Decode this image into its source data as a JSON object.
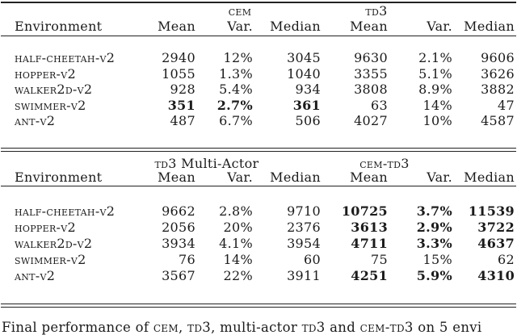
{
  "page": {
    "background": "#ffffff",
    "text_color": "#1b1b1b",
    "rule_color": "#222222"
  },
  "tables": [
    {
      "group_headers": [
        {
          "sc": "cem",
          "rest": ""
        },
        {
          "sc": "td3",
          "rest": ""
        }
      ],
      "col_headers": [
        "Environment",
        "Mean",
        "Var.",
        "Median",
        "Mean",
        "Var.",
        "Median"
      ],
      "rows": [
        {
          "env": "half-cheetah-v2",
          "cells": [
            {
              "v": "2940"
            },
            {
              "v": "12%"
            },
            {
              "v": "3045"
            },
            {
              "v": "9630"
            },
            {
              "v": "2.1%"
            },
            {
              "v": "9606"
            }
          ]
        },
        {
          "env": "hopper-v2",
          "cells": [
            {
              "v": "1055"
            },
            {
              "v": "1.3%"
            },
            {
              "v": "1040"
            },
            {
              "v": "3355"
            },
            {
              "v": "5.1%"
            },
            {
              "v": "3626"
            }
          ]
        },
        {
          "env": "walker2d-v2",
          "cells": [
            {
              "v": "928"
            },
            {
              "v": "5.4%"
            },
            {
              "v": "934"
            },
            {
              "v": "3808"
            },
            {
              "v": "8.9%"
            },
            {
              "v": "3882"
            }
          ]
        },
        {
          "env": "swimmer-v2",
          "cells": [
            {
              "v": "351",
              "b": true
            },
            {
              "v": "2.7%",
              "b": true
            },
            {
              "v": "361",
              "b": true
            },
            {
              "v": "63"
            },
            {
              "v": "14%"
            },
            {
              "v": "47"
            }
          ]
        },
        {
          "env": "ant-v2",
          "cells": [
            {
              "v": "487"
            },
            {
              "v": "6.7%"
            },
            {
              "v": "506"
            },
            {
              "v": "4027"
            },
            {
              "v": "10%"
            },
            {
              "v": "4587"
            }
          ]
        }
      ]
    },
    {
      "group_headers": [
        {
          "sc": "td3",
          "rest": " Multi-Actor"
        },
        {
          "sc": "cem-td3",
          "rest": ""
        }
      ],
      "col_headers": [
        "Environment",
        "Mean",
        "Var.",
        "Median",
        "Mean",
        "Var.",
        "Median"
      ],
      "rows": [
        {
          "env": "half-cheetah-v2",
          "cells": [
            {
              "v": "9662"
            },
            {
              "v": "2.8%"
            },
            {
              "v": "9710"
            },
            {
              "v": "10725",
              "b": true
            },
            {
              "v": "3.7%",
              "b": true
            },
            {
              "v": "11539",
              "b": true
            }
          ]
        },
        {
          "env": "hopper-v2",
          "cells": [
            {
              "v": "2056"
            },
            {
              "v": "20%"
            },
            {
              "v": "2376"
            },
            {
              "v": "3613",
              "b": true
            },
            {
              "v": "2.9%",
              "b": true
            },
            {
              "v": "3722",
              "b": true
            }
          ]
        },
        {
          "env": "walker2d-v2",
          "cells": [
            {
              "v": "3934"
            },
            {
              "v": "4.1%"
            },
            {
              "v": "3954"
            },
            {
              "v": "4711",
              "b": true
            },
            {
              "v": "3.3%",
              "b": true
            },
            {
              "v": "4637",
              "b": true
            }
          ]
        },
        {
          "env": "swimmer-v2",
          "cells": [
            {
              "v": "76"
            },
            {
              "v": "14%"
            },
            {
              "v": "60"
            },
            {
              "v": "75"
            },
            {
              "v": "15%"
            },
            {
              "v": "62"
            }
          ]
        },
        {
          "env": "ant-v2",
          "cells": [
            {
              "v": "3567"
            },
            {
              "v": "22%"
            },
            {
              "v": "3911"
            },
            {
              "v": "4251",
              "b": true
            },
            {
              "v": "5.9%",
              "b": true
            },
            {
              "v": "4310",
              "b": true
            }
          ]
        }
      ]
    }
  ],
  "caption": {
    "segments": [
      {
        "t": "Final performance of "
      },
      {
        "t": "cem",
        "sc": true
      },
      {
        "t": ", "
      },
      {
        "t": "td3",
        "sc": true
      },
      {
        "t": ", multi-actor "
      },
      {
        "t": "td3",
        "sc": true
      },
      {
        "t": " and "
      },
      {
        "t": "cem-td3",
        "sc": true
      },
      {
        "t": " on 5 envi"
      }
    ]
  }
}
